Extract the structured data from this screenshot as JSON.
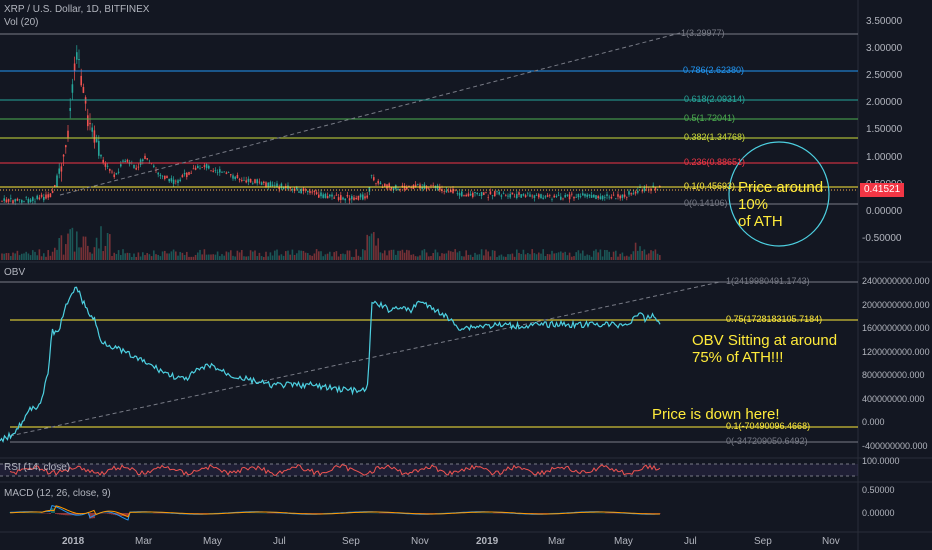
{
  "header": {
    "symbol_title": "XRP / U.S. Dollar, 1D, BITFINEX",
    "volume_label": "Vol (20)"
  },
  "price_pane": {
    "current_price": "0.41521",
    "y_ticks": [
      "3.50000",
      "3.00000",
      "2.50000",
      "2.00000",
      "1.50000",
      "1.00000",
      "0.50000",
      "0.00000",
      "-0.50000"
    ],
    "fib_levels": [
      {
        "label": "1(3.29977)",
        "color": "#787b86"
      },
      {
        "label": "0.786(2.62380)",
        "color": "#2196f3"
      },
      {
        "label": "0.618(2.09314)",
        "color": "#26a69a"
      },
      {
        "label": "0.5(1.72041)",
        "color": "#4caf50"
      },
      {
        "label": "0.382(1.34768)",
        "color": "#cddc39"
      },
      {
        "label": "0.236(0.88651)",
        "color": "#f23645"
      },
      {
        "label": "0.1(0.45693)",
        "color": "#ffeb3b"
      },
      {
        "label": "0(0.14106)",
        "color": "#787b86"
      }
    ],
    "annotation_lines": [
      "Price around",
      "10%",
      "of ATH"
    ]
  },
  "obv_pane": {
    "label": "OBV",
    "y_ticks": [
      "2400000000.000",
      "2000000000.000",
      "1600000000.000",
      "1200000000.000",
      "800000000.000",
      "400000000.000",
      "0.000",
      "-400000000.000"
    ],
    "fib_levels": [
      {
        "label": "1(2419980491.1743)",
        "color": "#787b86"
      },
      {
        "label": "0.75(1728183105.7184)",
        "color": "#ffeb3b"
      },
      {
        "label": "0.1(-70490096.4668)",
        "color": "#ffeb3b"
      },
      {
        "label": "0(-347209050.6492)",
        "color": "#787b86"
      }
    ],
    "annotation_lines": [
      "OBV Sitting at around",
      "75% of ATH!!!"
    ],
    "annotation2": "Price is down here!"
  },
  "rsi_pane": {
    "label": "RSI (14, close)",
    "y_tick": "100.0000"
  },
  "macd_pane": {
    "label": "MACD (12, 26, close, 9)",
    "y_ticks": [
      "0.50000",
      "0.00000"
    ]
  },
  "time_axis": [
    "2018",
    "Mar",
    "May",
    "Jul",
    "Sep",
    "Nov",
    "2019",
    "Mar",
    "May",
    "Jul",
    "Sep",
    "Nov"
  ],
  "colors": {
    "up": "#26a69a",
    "down": "#ef5350",
    "obv": "#4dd0e1",
    "accent_yellow": "#ffeb3b"
  }
}
